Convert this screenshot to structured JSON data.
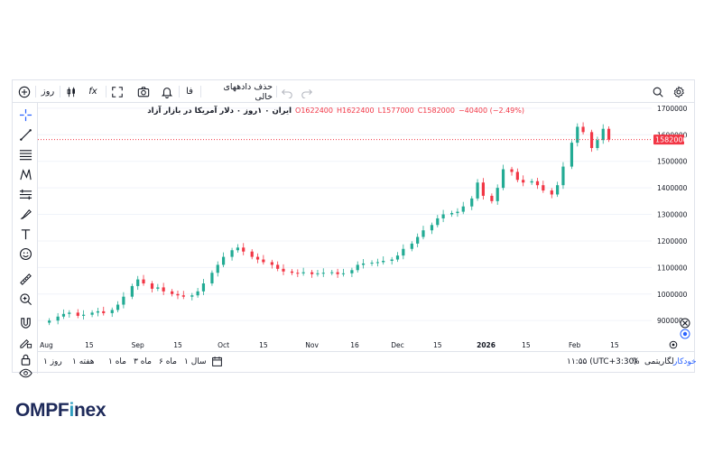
{
  "toolbar": {
    "interval": "روز",
    "fx": "fx",
    "lang": "فا",
    "clear_data": "حذف دادههای خالی"
  },
  "legend": {
    "title": "ایران ۰ ۱روز ۰ دلار آمریکا در بازار آزاد",
    "open": "O1622400",
    "high": "H1622400",
    "low": "L1577000",
    "close": "C1582000",
    "change": "−40400 (−2.49%)"
  },
  "price_axis": {
    "labels": [
      "1700000",
      "1600000",
      "1500000",
      "1400000",
      "1300000",
      "1200000",
      "1100000",
      "1000000",
      "900000"
    ],
    "current": "1582000"
  },
  "time_axis": {
    "labels": [
      "Aug",
      "15",
      "Sep",
      "15",
      "Oct",
      "15",
      "Nov",
      "16",
      "Dec",
      "15",
      "2026",
      "15",
      "Feb",
      "15"
    ]
  },
  "bottom": {
    "ranges": [
      "روز ۱",
      "هفته ۱",
      "ماه ۱",
      "ماه ۳",
      "ماه ۶",
      "سال ۱"
    ],
    "time": "۱۱:۵۵ (UTC+3:30)",
    "percent": "%",
    "log": "لگاریتمی",
    "auto": "خودکار"
  },
  "brand": {
    "name_a": "OMPF",
    "name_i": "i",
    "name_b": "nex"
  },
  "colors": {
    "up": "#22ab94",
    "down": "#f23645",
    "current_line": "#f23645"
  },
  "chart_data": {
    "type": "candlestick",
    "symbol": "ایران ۰ ۱روز ۰ دلار آمریکا در بازار آزاد",
    "ylim": [
      870000,
      1720000
    ],
    "ticks": [
      900000,
      1000000,
      1100000,
      1200000,
      1300000,
      1400000,
      1500000,
      1600000,
      1700000
    ],
    "last_close": 1582000,
    "series_close": [
      {
        "x": "2025-08-01",
        "y": 900000
      },
      {
        "x": "2025-08-04",
        "y": 915000
      },
      {
        "x": "2025-08-06",
        "y": 925000
      },
      {
        "x": "2025-08-08",
        "y": 930000
      },
      {
        "x": "2025-08-11",
        "y": 918000
      },
      {
        "x": "2025-08-13",
        "y": 922000
      },
      {
        "x": "2025-08-16",
        "y": 930000
      },
      {
        "x": "2025-08-18",
        "y": 935000
      },
      {
        "x": "2025-08-20",
        "y": 928000
      },
      {
        "x": "2025-08-23",
        "y": 940000
      },
      {
        "x": "2025-08-25",
        "y": 960000
      },
      {
        "x": "2025-08-27",
        "y": 990000
      },
      {
        "x": "2025-08-30",
        "y": 1030000
      },
      {
        "x": "2025-09-01",
        "y": 1055000
      },
      {
        "x": "2025-09-03",
        "y": 1040000
      },
      {
        "x": "2025-09-06",
        "y": 1020000
      },
      {
        "x": "2025-09-08",
        "y": 1025000
      },
      {
        "x": "2025-09-10",
        "y": 1010000
      },
      {
        "x": "2025-09-13",
        "y": 1000000
      },
      {
        "x": "2025-09-15",
        "y": 995000
      },
      {
        "x": "2025-09-17",
        "y": 990000
      },
      {
        "x": "2025-09-20",
        "y": 995000
      },
      {
        "x": "2025-09-22",
        "y": 1010000
      },
      {
        "x": "2025-09-24",
        "y": 1040000
      },
      {
        "x": "2025-09-27",
        "y": 1080000
      },
      {
        "x": "2025-09-29",
        "y": 1110000
      },
      {
        "x": "2025-10-01",
        "y": 1140000
      },
      {
        "x": "2025-10-04",
        "y": 1165000
      },
      {
        "x": "2025-10-06",
        "y": 1175000
      },
      {
        "x": "2025-10-08",
        "y": 1160000
      },
      {
        "x": "2025-10-11",
        "y": 1140000
      },
      {
        "x": "2025-10-13",
        "y": 1130000
      },
      {
        "x": "2025-10-15",
        "y": 1120000
      },
      {
        "x": "2025-10-18",
        "y": 1110000
      },
      {
        "x": "2025-10-20",
        "y": 1095000
      },
      {
        "x": "2025-10-22",
        "y": 1085000
      },
      {
        "x": "2025-10-25",
        "y": 1080000
      },
      {
        "x": "2025-10-27",
        "y": 1078000
      },
      {
        "x": "2025-10-29",
        "y": 1082000
      },
      {
        "x": "2025-11-01",
        "y": 1075000
      },
      {
        "x": "2025-11-03",
        "y": 1078000
      },
      {
        "x": "2025-11-05",
        "y": 1080000
      },
      {
        "x": "2025-11-08",
        "y": 1082000
      },
      {
        "x": "2025-11-10",
        "y": 1075000
      },
      {
        "x": "2025-11-12",
        "y": 1078000
      },
      {
        "x": "2025-11-15",
        "y": 1090000
      },
      {
        "x": "2025-11-17",
        "y": 1110000
      },
      {
        "x": "2025-11-19",
        "y": 1115000
      },
      {
        "x": "2025-11-22",
        "y": 1118000
      },
      {
        "x": "2025-11-24",
        "y": 1120000
      },
      {
        "x": "2025-11-26",
        "y": 1125000
      },
      {
        "x": "2025-11-29",
        "y": 1130000
      },
      {
        "x": "2025-12-01",
        "y": 1145000
      },
      {
        "x": "2025-12-03",
        "y": 1170000
      },
      {
        "x": "2025-12-06",
        "y": 1190000
      },
      {
        "x": "2025-12-08",
        "y": 1215000
      },
      {
        "x": "2025-12-10",
        "y": 1240000
      },
      {
        "x": "2025-12-13",
        "y": 1260000
      },
      {
        "x": "2025-12-15",
        "y": 1285000
      },
      {
        "x": "2025-12-17",
        "y": 1300000
      },
      {
        "x": "2025-12-20",
        "y": 1305000
      },
      {
        "x": "2025-12-22",
        "y": 1310000
      },
      {
        "x": "2025-12-24",
        "y": 1330000
      },
      {
        "x": "2025-12-27",
        "y": 1360000
      },
      {
        "x": "2025-12-29",
        "y": 1420000
      },
      {
        "x": "2025-12-31",
        "y": 1370000
      },
      {
        "x": "2026-01-03",
        "y": 1350000
      },
      {
        "x": "2026-01-05",
        "y": 1400000
      },
      {
        "x": "2026-01-07",
        "y": 1470000
      },
      {
        "x": "2026-01-10",
        "y": 1460000
      },
      {
        "x": "2026-01-12",
        "y": 1430000
      },
      {
        "x": "2026-01-14",
        "y": 1420000
      },
      {
        "x": "2026-01-17",
        "y": 1425000
      },
      {
        "x": "2026-01-19",
        "y": 1410000
      },
      {
        "x": "2026-01-21",
        "y": 1390000
      },
      {
        "x": "2026-01-24",
        "y": 1375000
      },
      {
        "x": "2026-01-26",
        "y": 1410000
      },
      {
        "x": "2026-01-28",
        "y": 1480000
      },
      {
        "x": "2026-01-31",
        "y": 1570000
      },
      {
        "x": "2026-02-02",
        "y": 1630000
      },
      {
        "x": "2026-02-04",
        "y": 1610000
      },
      {
        "x": "2026-02-07",
        "y": 1550000
      },
      {
        "x": "2026-02-09",
        "y": 1580000
      },
      {
        "x": "2026-02-11",
        "y": 1622400
      },
      {
        "x": "2026-02-13",
        "y": 1582000
      }
    ]
  }
}
